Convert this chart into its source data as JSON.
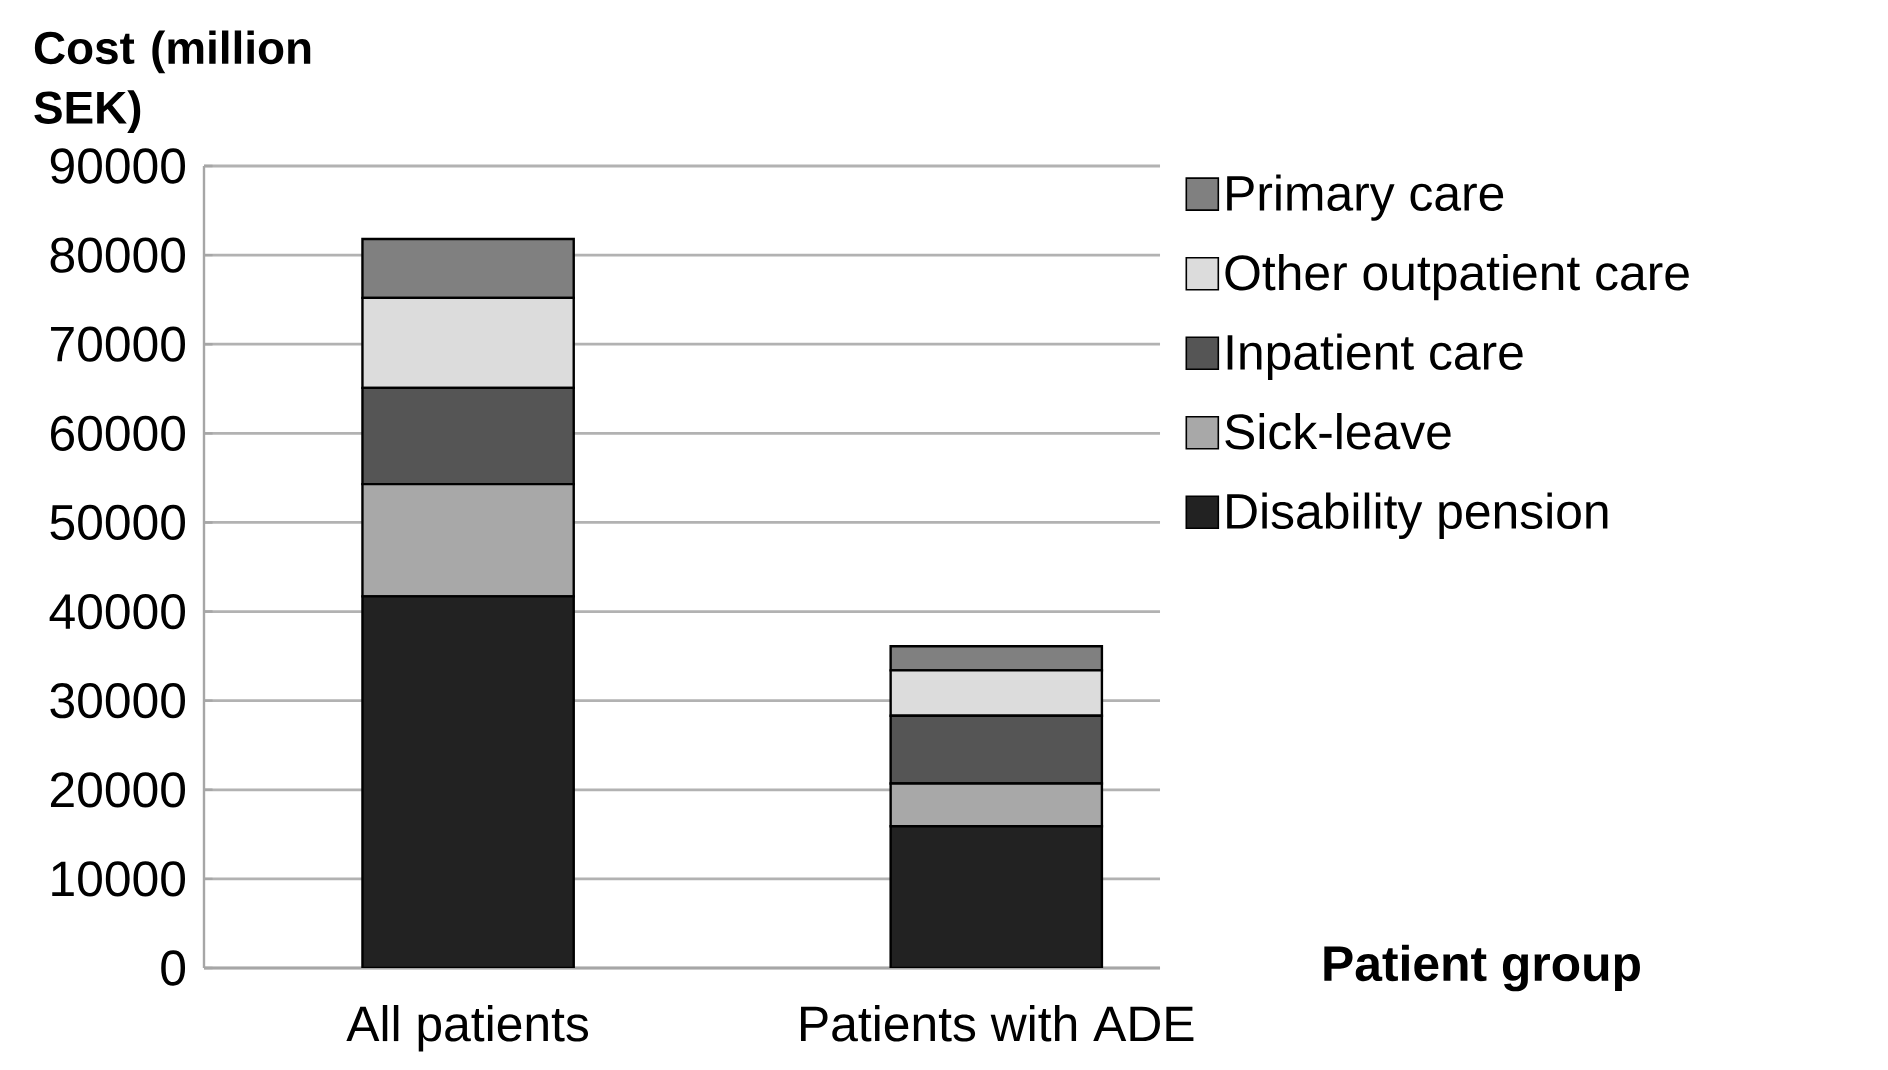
{
  "chart_data": {
    "type": "bar",
    "stacked": true,
    "xlabel": "Patient group",
    "ylabel": "Cost (million SEK)",
    "categories": [
      "All patients",
      "Patients with ADE"
    ],
    "series": [
      {
        "name": "Disability pension",
        "color": "#222222",
        "values": [
          41700,
          15900
        ]
      },
      {
        "name": "Sick-leave",
        "color": "#a8a8a8",
        "values": [
          12600,
          4800
        ]
      },
      {
        "name": "Inpatient care",
        "color": "#555555",
        "values": [
          10800,
          7600
        ]
      },
      {
        "name": "Other outpatient care",
        "color": "#dcdcdc",
        "values": [
          10100,
          5100
        ]
      },
      {
        "name": "Primary care",
        "color": "#808080",
        "values": [
          6600,
          2700
        ]
      }
    ],
    "ylim": [
      0,
      90000
    ],
    "yticks": [
      0,
      10000,
      20000,
      30000,
      40000,
      50000,
      60000,
      70000,
      80000,
      90000
    ],
    "grid": "y",
    "legend": "right"
  }
}
